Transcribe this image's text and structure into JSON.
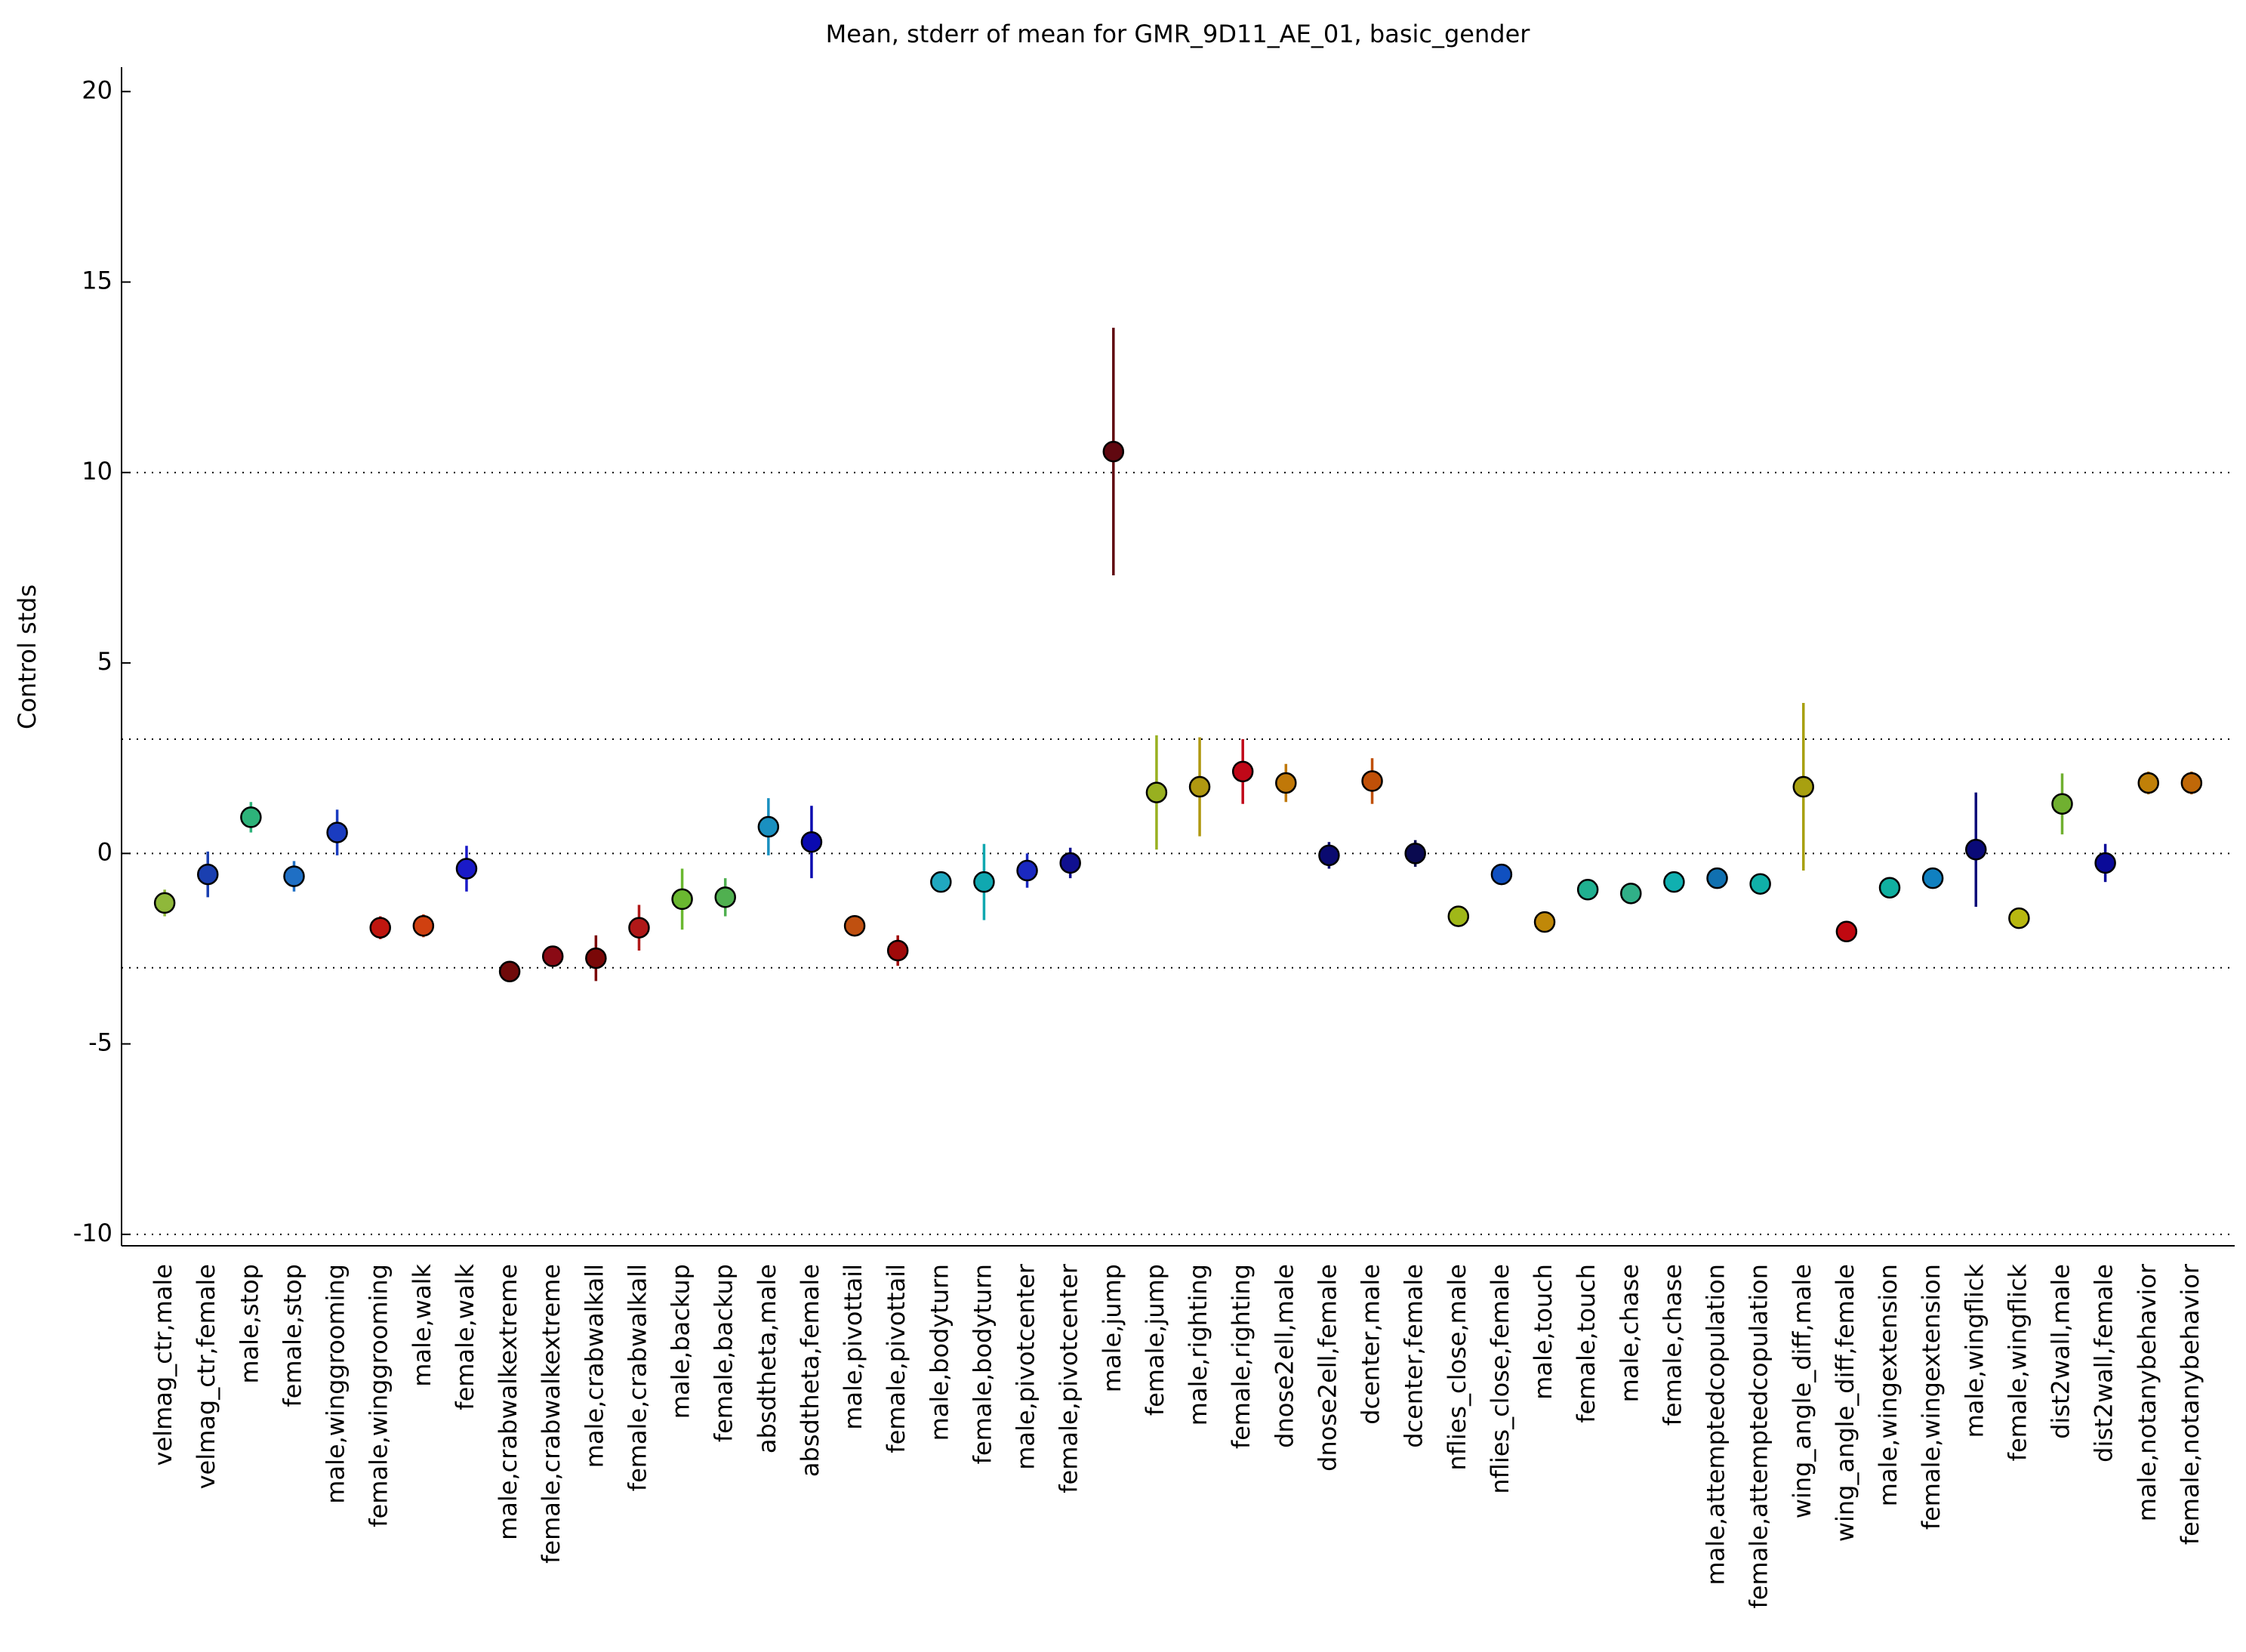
{
  "chart_data": {
    "type": "errorbar",
    "title": "Mean, stderr of mean for GMR_9D11_AE_01, basic_gender",
    "y_label": "Control stds",
    "ylim": [
      -10.3,
      20.64
    ],
    "yticks": [
      -10,
      -5,
      0,
      5,
      10,
      15,
      20
    ],
    "hlines": [
      -10,
      -3,
      0,
      3,
      10
    ],
    "categories": [
      "velmag_ctr,male",
      "velmag_ctr,female",
      "male,stop",
      "female,stop",
      "male,winggrooming",
      "female,winggrooming",
      "male,walk",
      "female,walk",
      "male,crabwalkextreme",
      "female,crabwalkextreme",
      "male,crabwalkall",
      "female,crabwalkall",
      "male,backup",
      "female,backup",
      "absdtheta,male",
      "absdtheta,female",
      "male,pivottail",
      "female,pivottail",
      "male,bodyturn",
      "female,bodyturn",
      "male,pivotcenter",
      "female,pivotcenter",
      "male,jump",
      "female,jump",
      "male,righting",
      "female,righting",
      "dnose2ell,male",
      "dnose2ell,female",
      "dcenter,male",
      "dcenter,female",
      "nflies_close,male",
      "nflies_close,female",
      "male,touch",
      "female,touch",
      "male,chase",
      "female,chase",
      "male,attemptedcopulation",
      "female,attemptedcopulation",
      "wing_angle_diff,male",
      "wing_angle_diff,female",
      "male,wingextension",
      "female,wingextension",
      "male,wingflick",
      "female,wingflick",
      "dist2wall,male",
      "dist2wall,female",
      "male,notanybehavior",
      "female,notanybehavior"
    ],
    "values": [
      -1.3,
      -0.55,
      0.95,
      -0.6,
      0.55,
      -1.95,
      -1.9,
      -0.4,
      -3.1,
      -2.7,
      -2.75,
      -1.95,
      -1.2,
      -1.15,
      0.7,
      0.3,
      -1.9,
      -2.55,
      -0.75,
      -0.75,
      -0.45,
      -0.25,
      10.55,
      1.6,
      1.75,
      2.15,
      1.85,
      -0.05,
      1.9,
      0.0,
      -1.65,
      -0.55,
      -1.8,
      -0.95,
      -1.05,
      -0.75,
      -0.65,
      -0.8,
      1.75,
      -2.05,
      -0.9,
      -0.65,
      0.1,
      -1.7,
      1.3,
      -0.25,
      1.85,
      1.85
    ],
    "errors": [
      0.35,
      0.6,
      0.4,
      0.4,
      0.6,
      0.3,
      0.3,
      0.6,
      0.2,
      0.25,
      0.6,
      0.6,
      0.8,
      0.5,
      0.75,
      0.95,
      0.25,
      0.4,
      0.2,
      1.0,
      0.45,
      0.4,
      3.25,
      1.5,
      1.3,
      0.85,
      0.5,
      0.35,
      0.6,
      0.35,
      0.2,
      0.2,
      0.2,
      0.2,
      0.15,
      0.15,
      0.15,
      0.1,
      2.2,
      0.2,
      0.15,
      0.15,
      1.5,
      0.25,
      0.8,
      0.5,
      0.3,
      0.3
    ],
    "colors": [
      "#8fb83a",
      "#1a3fb0",
      "#2db37a",
      "#1f6fc4",
      "#1a3cc0",
      "#c0160f",
      "#d04010",
      "#1a1ac8",
      "#700a0a",
      "#8a0a14",
      "#7a0808",
      "#b01818",
      "#6ab830",
      "#50b050",
      "#1a90c0",
      "#0a0ab0",
      "#c05010",
      "#a00a0a",
      "#20a8c0",
      "#10a8b0",
      "#1a28c0",
      "#101090",
      "#600810",
      "#98b020",
      "#b09810",
      "#c00818",
      "#c07808",
      "#0a0a70",
      "#c05008",
      "#0a0a50",
      "#a0b818",
      "#1050c0",
      "#c08808",
      "#20b090",
      "#30b088",
      "#10b0b0",
      "#1070b0",
      "#10b0a8",
      "#a8a010",
      "#c00810",
      "#10b0a0",
      "#1080c0",
      "#0a0a78",
      "#b8b810",
      "#70b030",
      "#0a0a98",
      "#c08008",
      "#c06808"
    ]
  }
}
